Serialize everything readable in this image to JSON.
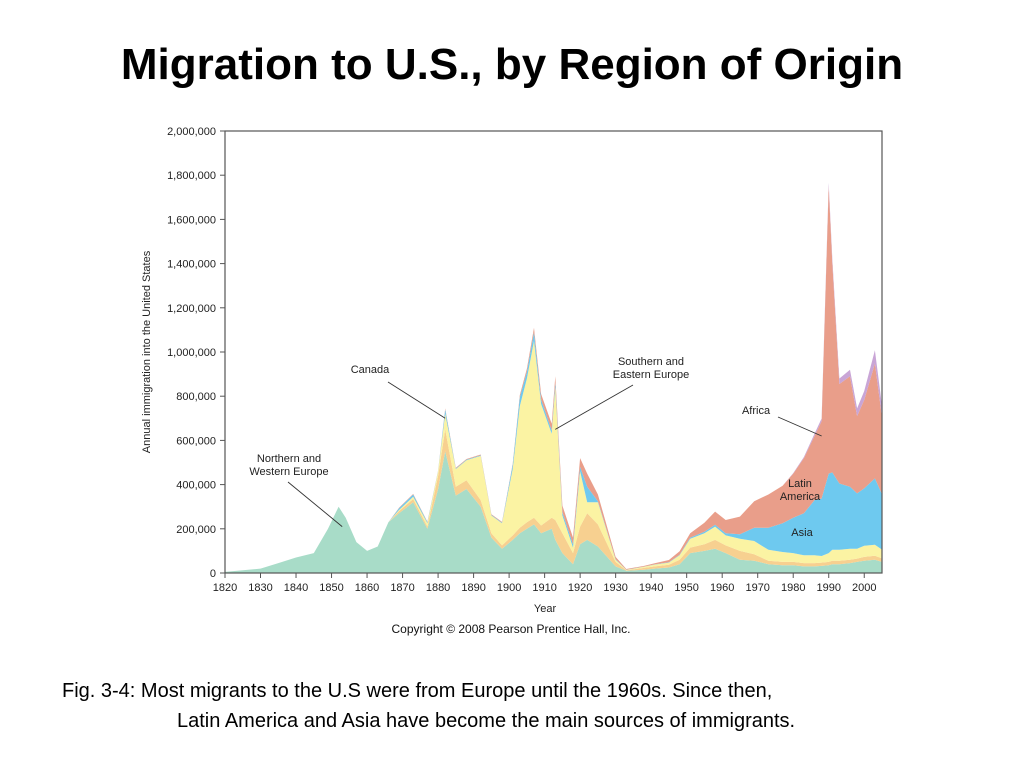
{
  "slide": {
    "title": "Migration to U.S., by Region of Origin",
    "caption_line1": "Fig. 3-4: Most migrants to the U.S were from Europe until the 1960s.  Since then,",
    "caption_line2": "Latin America and Asia have become the main sources of immigrants."
  },
  "chart_data": {
    "type": "area",
    "stacked": true,
    "title": "",
    "xlabel": "Year",
    "ylabel": "Annual immigration into the United States",
    "copyright": "Copyright © 2008 Pearson Prentice Hall, Inc.",
    "xlim": [
      1820,
      2005
    ],
    "ylim": [
      0,
      2000000
    ],
    "grid": false,
    "x_ticks": [
      1820,
      1830,
      1840,
      1850,
      1860,
      1870,
      1880,
      1890,
      1900,
      1910,
      1920,
      1930,
      1940,
      1950,
      1960,
      1970,
      1980,
      1990,
      2000
    ],
    "y_ticks": [
      0,
      200000,
      400000,
      600000,
      800000,
      1000000,
      1200000,
      1400000,
      1600000,
      1800000,
      2000000
    ],
    "y_tick_labels": [
      "0",
      "200,000",
      "400,000",
      "600,000",
      "800,000",
      "1,000,000",
      "1,200,000",
      "1,400,000",
      "1,600,000",
      "1,800,000",
      "2,000,000"
    ],
    "x": [
      1820,
      1825,
      1830,
      1835,
      1840,
      1845,
      1849,
      1852,
      1854,
      1857,
      1860,
      1863,
      1866,
      1869,
      1873,
      1877,
      1880,
      1882,
      1885,
      1888,
      1892,
      1895,
      1898,
      1901,
      1903,
      1905,
      1907,
      1909,
      1912,
      1913,
      1915,
      1918,
      1920,
      1922,
      1925,
      1930,
      1933,
      1938,
      1941,
      1945,
      1948,
      1951,
      1955,
      1958,
      1961,
      1965,
      1969,
      1973,
      1977,
      1980,
      1983,
      1986,
      1988,
      1990,
      1991,
      1993,
      1996,
      1998,
      2000,
      2003,
      2005
    ],
    "series": [
      {
        "key": "nw_europe",
        "color": "#a8dcc8",
        "values": [
          5000,
          12000,
          20000,
          45000,
          70000,
          90000,
          200000,
          300000,
          250000,
          140000,
          100000,
          120000,
          230000,
          270000,
          320000,
          200000,
          380000,
          550000,
          350000,
          380000,
          300000,
          160000,
          110000,
          150000,
          180000,
          200000,
          220000,
          180000,
          200000,
          150000,
          90000,
          40000,
          130000,
          150000,
          120000,
          30000,
          10000,
          15000,
          20000,
          25000,
          40000,
          90000,
          100000,
          110000,
          90000,
          60000,
          55000,
          40000,
          35000,
          35000,
          30000,
          30000,
          32000,
          35000,
          40000,
          40000,
          45000,
          50000,
          55000,
          60000,
          50000
        ]
      },
      {
        "key": "canada",
        "color": "#f7d090",
        "values": [
          0,
          0,
          0,
          0,
          0,
          0,
          0,
          0,
          0,
          0,
          0,
          0,
          0,
          10000,
          15000,
          10000,
          60000,
          100000,
          40000,
          40000,
          30000,
          20000,
          15000,
          20000,
          25000,
          30000,
          30000,
          35000,
          50000,
          90000,
          90000,
          50000,
          80000,
          120000,
          100000,
          20000,
          2000,
          8000,
          10000,
          12000,
          20000,
          25000,
          30000,
          40000,
          35000,
          40000,
          30000,
          15000,
          15000,
          15000,
          15000,
          15000,
          15000,
          15000,
          15000,
          15000,
          15000,
          15000,
          18000,
          18000,
          16000
        ]
      },
      {
        "key": "se_europe",
        "color": "#fbf3a3",
        "values": [
          0,
          0,
          0,
          0,
          0,
          0,
          0,
          0,
          0,
          0,
          0,
          0,
          0,
          5000,
          10000,
          15000,
          20000,
          70000,
          80000,
          90000,
          200000,
          80000,
          100000,
          300000,
          550000,
          650000,
          800000,
          550000,
          380000,
          600000,
          80000,
          25000,
          250000,
          50000,
          100000,
          10000,
          2000,
          5000,
          8000,
          10000,
          20000,
          40000,
          50000,
          60000,
          45000,
          55000,
          60000,
          50000,
          45000,
          40000,
          35000,
          35000,
          30000,
          40000,
          50000,
          50000,
          50000,
          45000,
          50000,
          50000,
          40000
        ]
      },
      {
        "key": "asia",
        "color": "#6ec9ef",
        "values": [
          0,
          0,
          0,
          0,
          0,
          0,
          0,
          0,
          0,
          0,
          0,
          0,
          0,
          8000,
          10000,
          5000,
          2000,
          20000,
          3000,
          3000,
          3000,
          3000,
          3000,
          20000,
          40000,
          30000,
          40000,
          20000,
          15000,
          20000,
          15000,
          15000,
          20000,
          70000,
          5000,
          3000,
          1000,
          1000,
          1000,
          2000,
          3000,
          5000,
          7000,
          8000,
          10000,
          20000,
          60000,
          100000,
          130000,
          160000,
          190000,
          250000,
          260000,
          360000,
          350000,
          300000,
          280000,
          250000,
          260000,
          300000,
          250000
        ]
      },
      {
        "key": "latin_america",
        "color": "#e99e8a",
        "values": [
          0,
          0,
          0,
          0,
          0,
          0,
          0,
          0,
          0,
          0,
          0,
          0,
          0,
          2000,
          3000,
          2000,
          2000,
          5000,
          3000,
          3000,
          3000,
          3000,
          3000,
          5000,
          10000,
          15000,
          20000,
          25000,
          30000,
          30000,
          30000,
          30000,
          40000,
          60000,
          30000,
          10000,
          3000,
          3000,
          5000,
          10000,
          15000,
          20000,
          40000,
          60000,
          60000,
          80000,
          120000,
          150000,
          170000,
          200000,
          250000,
          290000,
          350000,
          1300000,
          950000,
          450000,
          500000,
          350000,
          400000,
          520000,
          350000
        ]
      },
      {
        "key": "africa",
        "color": "#c9a5d6",
        "values": [
          0,
          0,
          0,
          0,
          0,
          0,
          0,
          0,
          0,
          0,
          0,
          0,
          0,
          0,
          0,
          0,
          0,
          0,
          0,
          0,
          0,
          0,
          0,
          0,
          0,
          0,
          0,
          0,
          0,
          0,
          0,
          0,
          0,
          0,
          0,
          0,
          0,
          0,
          0,
          0,
          0,
          0,
          0,
          0,
          0,
          0,
          0,
          0,
          0,
          2000,
          5000,
          10000,
          12000,
          15000,
          20000,
          25000,
          30000,
          35000,
          40000,
          60000,
          50000
        ]
      }
    ],
    "annotations": [
      {
        "lines": [
          "Canada"
        ],
        "target": [
          1882,
          700000
        ],
        "anchor": "middle"
      },
      {
        "lines": [
          "Southern and",
          "Eastern Europe"
        ],
        "target": [
          1913,
          650000
        ],
        "anchor": "middle"
      },
      {
        "lines": [
          "Africa"
        ],
        "target": [
          1988,
          620000
        ],
        "anchor": "middle"
      },
      {
        "lines": [
          "Northern and",
          "Western Europe"
        ],
        "target": [
          1853,
          210000
        ],
        "anchor": "middle"
      },
      {
        "lines": [
          "Latin",
          "America"
        ],
        "target": null,
        "anchor": "middle"
      },
      {
        "lines": [
          "Asia"
        ],
        "target": null,
        "anchor": "middle"
      }
    ]
  }
}
